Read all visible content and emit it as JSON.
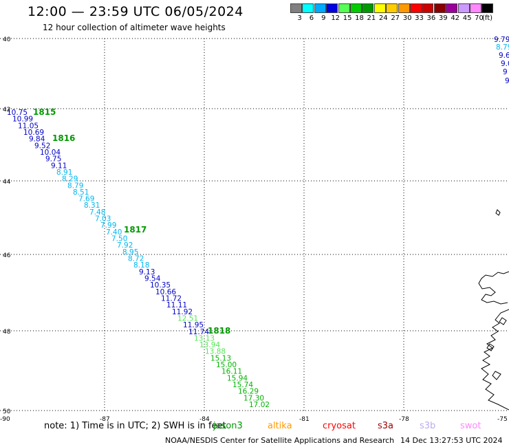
{
  "header": {
    "title": "12:00 — 23:59 UTC 06/05/2024",
    "subtitle": "12 hour collection of altimeter wave heights"
  },
  "legend": {
    "unit": "(ft)",
    "items": [
      {
        "label": "3",
        "color": "#808080"
      },
      {
        "label": "6",
        "color": "#00ffff"
      },
      {
        "label": "9",
        "color": "#00aaff"
      },
      {
        "label": "12",
        "color": "#0000e0"
      },
      {
        "label": "15",
        "color": "#55ff55"
      },
      {
        "label": "18",
        "color": "#00cc00"
      },
      {
        "label": "21",
        "color": "#009900"
      },
      {
        "label": "24",
        "color": "#ffff00"
      },
      {
        "label": "27",
        "color": "#ffcc00"
      },
      {
        "label": "30",
        "color": "#ff9900"
      },
      {
        "label": "33",
        "color": "#ff0000"
      },
      {
        "label": "36",
        "color": "#cc0000"
      },
      {
        "label": "39",
        "color": "#880000"
      },
      {
        "label": "42",
        "color": "#990099"
      },
      {
        "label": "45",
        "color": "#cc99ff"
      },
      {
        "label": "70",
        "color": "#ff88ff"
      },
      {
        "label": "",
        "color": "#000000"
      }
    ]
  },
  "axes": {
    "lat_labels": [
      "40",
      "42",
      "44",
      "46",
      "48",
      "50"
    ],
    "lon_labels": [
      "-90",
      "-87",
      "-84",
      "-81",
      "-78",
      "-75"
    ]
  },
  "track": {
    "color_scale": [
      {
        "max": 9.0,
        "color": "#00b7f0"
      },
      {
        "max": 12.0,
        "color": "#0000c8"
      },
      {
        "max": 15.0,
        "color": "#55e655"
      },
      {
        "max": 18.0,
        "color": "#00b400"
      }
    ],
    "values": [
      "10.75",
      "10.99",
      "11.05",
      "10.69",
      "9.84",
      "9.52",
      "10.04",
      "9.75",
      "9.11",
      "8.91",
      "8.29",
      "8.79",
      "8.51",
      "7.69",
      "8.31",
      "7.48",
      "7.03",
      "7.99",
      "7.40",
      "7.50",
      "7.92",
      "8.95",
      "8.72",
      "8.18",
      "9.13",
      "9.54",
      "10.35",
      "10.66",
      "11.72",
      "11.11",
      "11.92",
      "12.51",
      "11.95",
      "11.74",
      "13.13",
      "13.94",
      "13.88",
      "15.13",
      "15.00",
      "16.11",
      "15.94",
      "15.74",
      "16.29",
      "17.30",
      "17.02"
    ],
    "time_labels": [
      "1815",
      "1816",
      "1817",
      "1818"
    ],
    "edge_values": [
      "9.79",
      "8.79",
      "9.6",
      "9.0",
      "9",
      "9"
    ]
  },
  "note": "note: 1) Time is in UTC; 2) SWH is in feet",
  "satellites": [
    {
      "name": "jason3",
      "color": "#009900"
    },
    {
      "name": "altika",
      "color": "#ff9900"
    },
    {
      "name": "cryosat",
      "color": "#ff0000"
    },
    {
      "name": "s3a",
      "color": "#990000"
    },
    {
      "name": "s3b",
      "color": "#bbaaee"
    },
    {
      "name": "swot",
      "color": "#ff88ff"
    }
  ],
  "footer": {
    "credit": "NOAA/NESDIS Center for Satellite Applications and Research",
    "timestamp": "14 Dec 13:27:53 UTC 2024"
  }
}
